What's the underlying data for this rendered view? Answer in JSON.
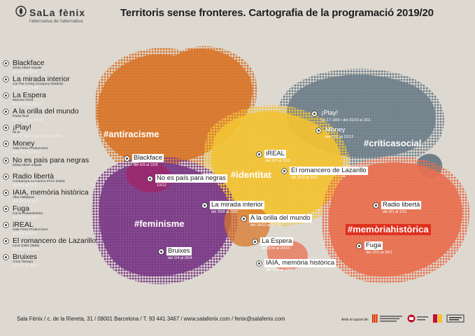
{
  "header": {
    "logo_name": "SaLa fènix",
    "logo_tagline": "l'alternativa de l'alternativa",
    "title": "Territoris sense fronteres. Cartografia de la programació 2019/20"
  },
  "colors": {
    "orange": "#d8752a",
    "yellow": "#f2c233",
    "purple": "#7a3a86",
    "slate": "#6f7f8a",
    "coral": "#e86f4f",
    "red_tag": "#e0301e",
    "background": "#ddd9d1"
  },
  "legend": [
    {
      "title": "Blackface",
      "company": "Sílvia Albert Sopale",
      "dates": "del 5/9 al 22/9"
    },
    {
      "title": "La mirada interior",
      "company": "Cia The Acting Company (Madrid)",
      "dates": "del 26/9 al 29/9"
    },
    {
      "title": "La Espera",
      "company": "Marcela Terra",
      "dates": "del 3/10 al 20/10"
    },
    {
      "title": "A la orilla del mundo",
      "company": "Paula Ruiz",
      "dates": "del 24/10 al 27/10"
    },
    {
      "title": "¡Play!",
      "company": "Iai Ia",
      "dates": "16-17-18/9 i del 31/10 al 3/11"
    },
    {
      "title": "Money",
      "company": "Sala Fènix Produccions",
      "dates": "del 7/11 al 22/12"
    },
    {
      "title": "No es país para negras",
      "company": "Sílvia Albert Sopale",
      "dates": "13/12"
    },
    {
      "title": "Radio libertà",
      "company": "Companyia La Canica d'Oro (Italia)",
      "dates": "del 8/1 al 12/1"
    },
    {
      "title": "IAIA, memòria històrica",
      "company": "Alba Valldaura",
      "dates": "del 15/1 al 19/1"
    },
    {
      "title": "Fuga",
      "company": "Cia la Rusandestina",
      "dates": "del 22/1 al 26/1"
    },
    {
      "title": "iREAL",
      "company": "Sala Fènix Produccions",
      "dates": "del 6/2 al 22/3"
    },
    {
      "title": "El romancero de Lazarillo",
      "company": "Luca Gatto (Italia)",
      "dates": "del 25/3 al 29/3"
    },
    {
      "title": "Bruixes",
      "company": "Anna Tamayo",
      "dates": "del 2/4 al 26/4"
    }
  ],
  "tags": {
    "antiracisme": "#antiracisme",
    "identitat": "#identitat",
    "criticasocial": "#críticasocial",
    "feminisme": "#feminisme",
    "memoriahistorica": "#memòriahistòrica"
  },
  "markers": {
    "play": {
      "label": "¡Play!",
      "dates": "16-17-18/9 i del 31/10 al 3/11"
    },
    "money": {
      "label": "Money",
      "dates": "del 7/11 al 22/12"
    },
    "blackface": {
      "label": "Blackface",
      "dates": "del 5/9 al 22/9"
    },
    "ireal": {
      "label": "iREAL",
      "dates": "del 6/2 al 22/3"
    },
    "romancero": {
      "label": "El romancero de Lazarillo",
      "dates": "del 25/3 al 29/3"
    },
    "noespais": {
      "label": "No es país para negras",
      "dates": "13/12"
    },
    "radio": {
      "label": "Radio libertà",
      "dates": "del 8/1 al 12/1"
    },
    "mirada": {
      "label": "La mirada interior",
      "dates": "del 26/9 al 29/9"
    },
    "orilla": {
      "label": "A la orilla del mundo",
      "dates": "del 24/10 al 27/10"
    },
    "espera": {
      "label": "La Espera",
      "dates": "del 3/10 al 20/10"
    },
    "fuga": {
      "label": "Fuga",
      "dates": "del 22/1 al 26/1"
    },
    "bruixes": {
      "label": "Bruixes",
      "dates": "del 2/4 al 26/4"
    },
    "iaia": {
      "label": "IAIA, memòria històrica",
      "dates": "del 15/1 al 19/1"
    }
  },
  "footer": {
    "address": "Sala Fènix / c. de la Riereta, 31 / 08001 Barcelona / T. 93 441 3467 / www.salafenix.com / fenix@salafenix.com",
    "support": "Amb el suport de:"
  }
}
